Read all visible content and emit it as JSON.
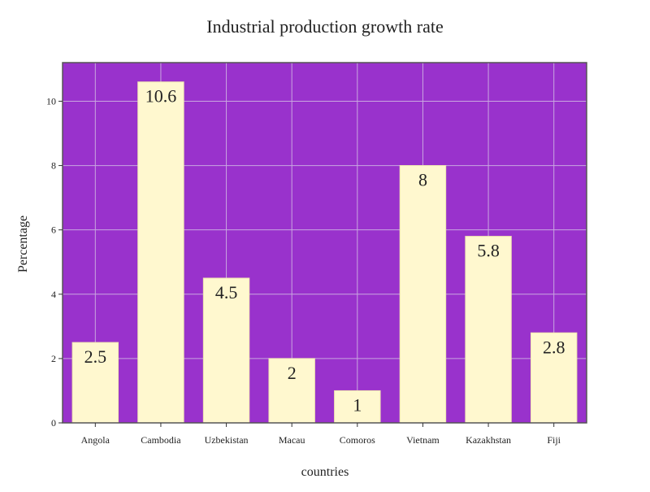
{
  "chart_data": {
    "type": "bar",
    "title": "Industrial production growth rate",
    "xlabel": "countries",
    "ylabel": "Percentage",
    "categories": [
      "Angola",
      "Cambodia",
      "Uzbekistan",
      "Macau",
      "Comoros",
      "Vietnam",
      "Kazakhstan",
      "Fiji"
    ],
    "values": [
      2.5,
      10.6,
      4.5,
      2,
      1,
      8,
      5.8,
      2.8
    ],
    "data_labels": [
      "2.5",
      "10.6",
      "4.5",
      "2",
      "1",
      "8",
      "5.8",
      "2.8"
    ],
    "yticks": [
      0,
      2,
      4,
      6,
      8,
      10
    ],
    "ylim": [
      0,
      11.2
    ],
    "grid": true,
    "colors": {
      "plot_background": "#9932CC",
      "bar_fill": "#FFF8CF",
      "bar_edge": "#F0E6B0",
      "grid": "#C9A6E0",
      "frame": "#555555"
    }
  }
}
